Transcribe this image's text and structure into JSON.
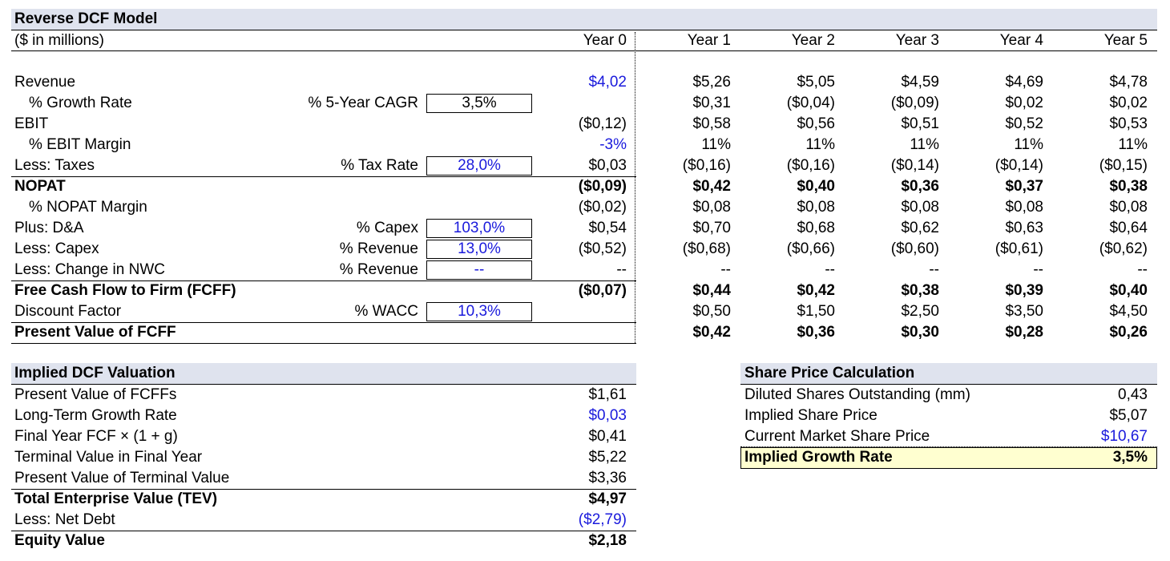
{
  "model": {
    "title": "Reverse DCF Model",
    "units": "($ in millions)",
    "years": [
      "Year 0",
      "Year 1",
      "Year 2",
      "Year 3",
      "Year 4",
      "Year 5"
    ],
    "rows": [
      {
        "label": "Revenue",
        "input_label": "",
        "input_value": "",
        "values": [
          "$4,02",
          "$5,26",
          "$5,05",
          "$4,59",
          "$4,69",
          "$4,78"
        ]
      },
      {
        "label": "% Growth Rate",
        "input_label": "% 5-Year CAGR",
        "input_value": "3,5%",
        "values": [
          "",
          "$0,31",
          "($0,04)",
          "($0,09)",
          "$0,02",
          "$0,02"
        ]
      },
      {
        "label": "EBIT",
        "input_label": "",
        "input_value": "",
        "values": [
          "($0,12)",
          "$0,58",
          "$0,56",
          "$0,51",
          "$0,52",
          "$0,53"
        ]
      },
      {
        "label": "% EBIT Margin",
        "input_label": "",
        "input_value": "",
        "values": [
          "-3%",
          "11%",
          "11%",
          "11%",
          "11%",
          "11%"
        ]
      },
      {
        "label": "Less: Taxes",
        "input_label": "% Tax Rate",
        "input_value": "28,0%",
        "values": [
          "$0,03",
          "($0,16)",
          "($0,16)",
          "($0,14)",
          "($0,14)",
          "($0,15)"
        ]
      },
      {
        "label": "NOPAT",
        "input_label": "",
        "input_value": "",
        "values": [
          "($0,09)",
          "$0,42",
          "$0,40",
          "$0,36",
          "$0,37",
          "$0,38"
        ]
      },
      {
        "label": "% NOPAT Margin",
        "input_label": "",
        "input_value": "",
        "values": [
          "($0,02)",
          "$0,08",
          "$0,08",
          "$0,08",
          "$0,08",
          "$0,08"
        ]
      },
      {
        "label": "Plus: D&A",
        "input_label": "% Capex",
        "input_value": "103,0%",
        "values": [
          "$0,54",
          "$0,70",
          "$0,68",
          "$0,62",
          "$0,63",
          "$0,64"
        ]
      },
      {
        "label": "Less: Capex",
        "input_label": "% Revenue",
        "input_value": "13,0%",
        "values": [
          "($0,52)",
          "($0,68)",
          "($0,66)",
          "($0,60)",
          "($0,61)",
          "($0,62)"
        ]
      },
      {
        "label": "Less: Change in NWC",
        "input_label": "% Revenue",
        "input_value": "--",
        "values": [
          "--",
          "--",
          "--",
          "--",
          "--",
          "--"
        ]
      },
      {
        "label": "Free Cash Flow to Firm (FCFF)",
        "input_label": "",
        "input_value": "",
        "values": [
          "($0,07)",
          "$0,44",
          "$0,42",
          "$0,38",
          "$0,39",
          "$0,40"
        ]
      },
      {
        "label": "Discount Factor",
        "input_label": "% WACC",
        "input_value": "10,3%",
        "values": [
          "",
          "$0,50",
          "$1,50",
          "$2,50",
          "$3,50",
          "$4,50"
        ]
      },
      {
        "label": "Present Value of FCFF",
        "input_label": "",
        "input_value": "",
        "values": [
          "",
          "$0,42",
          "$0,36",
          "$0,30",
          "$0,28",
          "$0,26"
        ]
      }
    ]
  },
  "valuation": {
    "title": "Implied DCF Valuation",
    "rows": [
      {
        "label": "Present Value of FCFFs",
        "value": "$1,61"
      },
      {
        "label": "Long-Term Growth Rate",
        "value": "$0,03"
      },
      {
        "label": "Final Year FCF × (1 + g)",
        "value": "$0,41"
      },
      {
        "label": "Terminal Value in Final Year",
        "value": "$5,22"
      },
      {
        "label": "Present Value of Terminal Value",
        "value": "$3,36"
      },
      {
        "label": "Total Enterprise Value (TEV)",
        "value": "$4,97"
      },
      {
        "label": "Less: Net Debt",
        "value": "($2,79)"
      },
      {
        "label": "Equity Value",
        "value": "$2,18"
      }
    ]
  },
  "share_price": {
    "title": "Share Price Calculation",
    "rows": [
      {
        "label": "Diluted Shares Outstanding (mm)",
        "value": "0,43"
      },
      {
        "label": "Implied Share Price",
        "value": "$5,07"
      },
      {
        "label": "Current Market Share Price",
        "value": "$10,67"
      },
      {
        "label": "Implied Growth Rate",
        "value": "3,5%"
      }
    ]
  },
  "colors": {
    "header_band": "#dfe3ee",
    "input_blue": "#1a1adc",
    "highlight": "#ffffd0"
  }
}
